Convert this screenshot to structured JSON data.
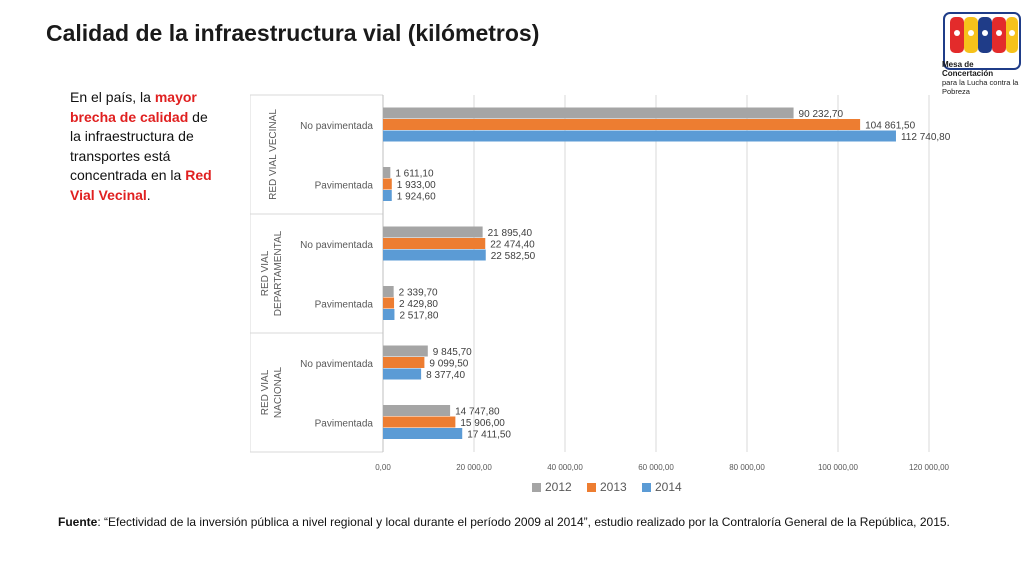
{
  "title": "Calidad de la infraestructura vial (kilómetros)",
  "side_text": {
    "part1": "En el país, la ",
    "highlight1": "mayor brecha de calidad",
    "part2": " de la infraestructura de transportes está concentrada en la ",
    "highlight2": "Red Vial Vecinal",
    "part3": "."
  },
  "source": {
    "label": "Fuente",
    "text": ": “Efectividad de la inversión pública a nivel regional y local durante el período 2009 al 2014”, estudio realizado por la Contraloría General de la República, 2015."
  },
  "logo": {
    "line1": "Mesa de Concertación",
    "line2": "para la Lucha contra la Pobreza"
  },
  "colors": {
    "s2012": "#a5a5a5",
    "s2013": "#ed7d31",
    "s2014": "#5b9bd5",
    "highlight": "#e02020"
  },
  "chart_data": {
    "type": "bar",
    "orientation": "horizontal",
    "title": "",
    "xlim": [
      0,
      120000
    ],
    "x_ticks": [
      "0,00",
      "20 000,00",
      "40 000,00",
      "60 000,00",
      "80 000,00",
      "100 000,00",
      "120 000,00"
    ],
    "grid": true,
    "legend_position": "bottom",
    "groups": [
      {
        "name": "RED VIAL VECINAL",
        "categories": [
          "No pavimentada",
          "Pavimentada"
        ]
      },
      {
        "name": "RED VIAL DEPARTAMENTAL",
        "categories": [
          "No pavimentada",
          "Pavimentada"
        ]
      },
      {
        "name": "RED VIAL NACIONAL",
        "categories": [
          "No pavimentada",
          "Pavimentada"
        ]
      }
    ],
    "series": [
      {
        "name": "2012",
        "values": [
          90232.7,
          1611.1,
          21895.4,
          2339.7,
          9845.7,
          14747.8
        ],
        "labels": [
          "90 232,70",
          "1 611,10",
          "21 895,40",
          "2 339,70",
          "9 845,70",
          "14 747,80"
        ]
      },
      {
        "name": "2013",
        "values": [
          104861.5,
          1933.0,
          22474.4,
          2429.8,
          9099.5,
          15906.0
        ],
        "labels": [
          "104 861,50",
          "1 933,00",
          "22 474,40",
          "2 429,80",
          "9 099,50",
          "15 906,00"
        ]
      },
      {
        "name": "2014",
        "values": [
          112740.8,
          1924.6,
          22582.5,
          2517.8,
          8377.4,
          17411.5
        ],
        "labels": [
          "112 740,80",
          "1 924,60",
          "22 582,50",
          "2 517,80",
          "8 377,40",
          "17 411,50"
        ]
      }
    ]
  }
}
